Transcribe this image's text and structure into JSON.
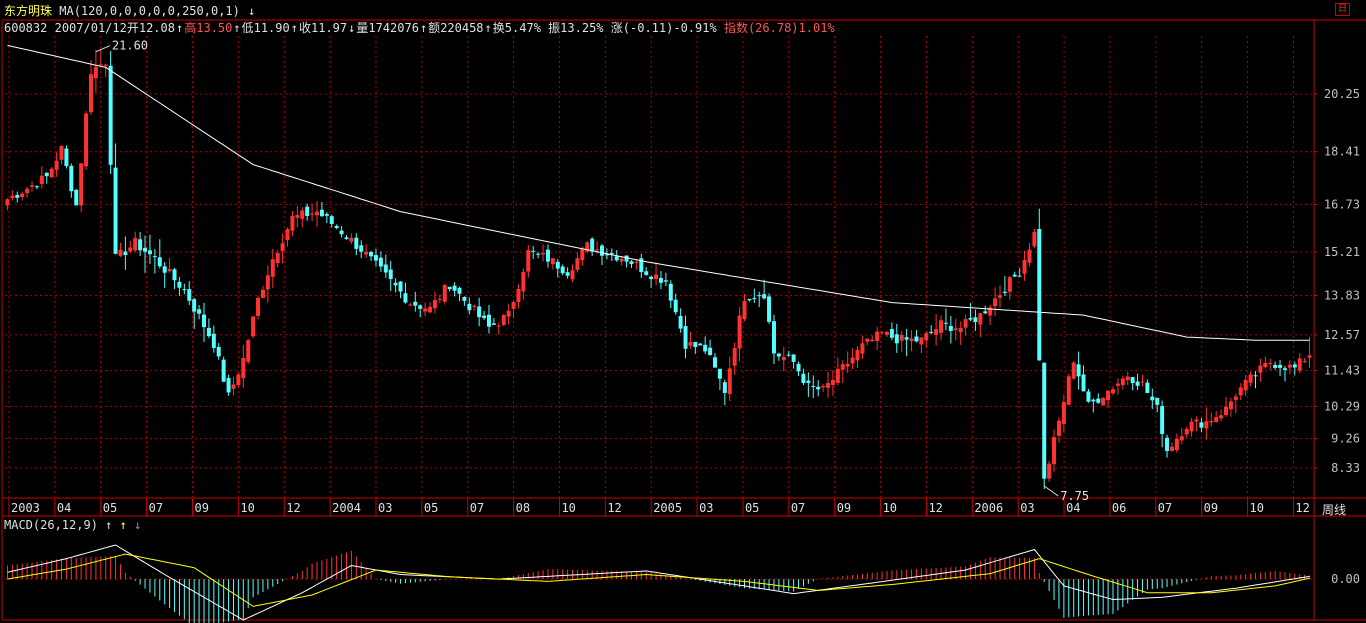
{
  "header": {
    "stock_name": "东方明珠",
    "ma_params": "MA(120,0,0,0,0,0,250,0,1)",
    "code": "600832",
    "date": "2007/01/12",
    "open_label": "开",
    "open": "12.08",
    "high_label": "高",
    "high": "13.50",
    "low_label": "低",
    "low": "11.90",
    "close_label": "收",
    "close": "11.97",
    "volume_label": "量",
    "volume": "1742076",
    "amount_label": "额",
    "amount": "220458",
    "turnover_label": "换",
    "turnover": "5.47%",
    "amplitude_label": "振",
    "amplitude": "13.25%",
    "change_label": "涨",
    "change": "(-0.11)-0.91%",
    "index_label": "指数",
    "index_value": "(26.78)",
    "index_pct": "1.01%"
  },
  "toolbar": {
    "restore_label": "日"
  },
  "period_label": "周线",
  "macd": {
    "label": "MACD(26,12,9)"
  },
  "colors": {
    "up": "#ff3232",
    "down": "#54ffff",
    "ma": "#ffffff",
    "grid": "#b00000",
    "axis": "#c80000",
    "dif": "#ffffff",
    "dea": "#ffff00"
  },
  "chart_data": [
    {
      "type": "candlestick",
      "title": "",
      "ylim": [
        7.4,
        22.1
      ],
      "y_ticks": [
        "20.25",
        "18.41",
        "16.73",
        "15.21",
        "13.83",
        "12.57",
        "11.43",
        "10.29",
        "9.26",
        "8.33"
      ],
      "x_ticks": [
        "2003",
        "04",
        "05",
        "07",
        "09",
        "10",
        "12",
        "2004",
        "03",
        "05",
        "07",
        "08",
        "10",
        "12",
        "2005",
        "03",
        "05",
        "07",
        "09",
        "10",
        "12",
        "2006",
        "03",
        "04",
        "06",
        "07",
        "09",
        "10",
        "12"
      ],
      "annotations": [
        {
          "text": "21.60",
          "value": 21.6
        },
        {
          "text": "7.75",
          "value": 7.75
        }
      ],
      "series": [
        {
          "name": "MA(120)",
          "anchors": [
            [
              0,
              21.8
            ],
            [
              20,
              21.1
            ],
            [
              50,
              18.0
            ],
            [
              80,
              16.5
            ],
            [
              130,
              14.9
            ],
            [
              180,
              13.6
            ],
            [
              219,
              13.2
            ],
            [
              240,
              12.5
            ],
            [
              254,
              12.4
            ]
          ]
        }
      ],
      "weekly_close_anchors": [
        [
          0,
          16.9
        ],
        [
          8,
          17.6
        ],
        [
          11,
          18.5
        ],
        [
          14,
          16.7
        ],
        [
          17,
          21.0
        ],
        [
          20,
          21.3
        ],
        [
          22,
          15.0
        ],
        [
          26,
          15.5
        ],
        [
          30,
          15.0
        ],
        [
          36,
          14.0
        ],
        [
          42,
          12.3
        ],
        [
          45,
          10.6
        ],
        [
          48,
          11.8
        ],
        [
          51,
          13.7
        ],
        [
          54,
          15.0
        ],
        [
          58,
          16.3
        ],
        [
          63,
          16.5
        ],
        [
          67,
          16.0
        ],
        [
          72,
          15.3
        ],
        [
          76,
          14.6
        ],
        [
          82,
          13.6
        ],
        [
          86,
          13.4
        ],
        [
          90,
          14.2
        ],
        [
          94,
          13.5
        ],
        [
          98,
          12.8
        ],
        [
          102,
          13.2
        ],
        [
          106,
          15.2
        ],
        [
          110,
          15.0
        ],
        [
          114,
          14.6
        ],
        [
          118,
          15.4
        ],
        [
          122,
          15.2
        ],
        [
          126,
          15.0
        ],
        [
          130,
          14.6
        ],
        [
          134,
          14.3
        ],
        [
          138,
          12.3
        ],
        [
          142,
          12.1
        ],
        [
          146,
          10.8
        ],
        [
          150,
          13.8
        ],
        [
          154,
          13.9
        ],
        [
          156,
          12.0
        ],
        [
          160,
          11.7
        ],
        [
          163,
          10.9
        ],
        [
          166,
          10.8
        ],
        [
          170,
          11.5
        ],
        [
          174,
          12.2
        ],
        [
          178,
          12.6
        ],
        [
          182,
          12.4
        ],
        [
          186,
          12.4
        ],
        [
          190,
          12.9
        ],
        [
          194,
          12.8
        ],
        [
          198,
          13.2
        ],
        [
          202,
          13.9
        ],
        [
          206,
          14.6
        ],
        [
          209,
          15.8
        ],
        [
          211,
          7.9
        ],
        [
          214,
          9.8
        ],
        [
          217,
          11.8
        ],
        [
          220,
          10.3
        ],
        [
          224,
          10.8
        ],
        [
          228,
          11.3
        ],
        [
          231,
          11.0
        ],
        [
          234,
          10.2
        ],
        [
          236,
          8.9
        ],
        [
          240,
          9.7
        ],
        [
          244,
          9.8
        ],
        [
          248,
          10.2
        ],
        [
          250,
          10.7
        ],
        [
          254,
          11.3
        ],
        [
          257,
          11.7
        ],
        [
          262,
          11.5
        ],
        [
          265,
          11.97
        ]
      ],
      "weekly_range_anchors": [
        [
          0,
          0.6
        ],
        [
          17,
          1.2
        ],
        [
          21,
          1.8
        ],
        [
          22,
          3.0
        ],
        [
          40,
          1.3
        ],
        [
          100,
          0.9
        ],
        [
          209,
          1.4
        ],
        [
          210,
          5.5
        ],
        [
          211,
          1.6
        ],
        [
          218,
          1.0
        ],
        [
          260,
          1.2
        ],
        [
          265,
          1.6
        ]
      ]
    },
    {
      "type": "macd",
      "params": [
        26,
        12,
        9
      ],
      "ylim": [
        -0.9,
        1.3
      ],
      "y_ticks": [
        "0.00"
      ],
      "dif_anchors": [
        [
          0,
          0.15
        ],
        [
          12,
          0.45
        ],
        [
          22,
          0.75
        ],
        [
          32,
          0.1
        ],
        [
          48,
          -0.9
        ],
        [
          60,
          -0.3
        ],
        [
          70,
          0.3
        ],
        [
          80,
          0.1
        ],
        [
          100,
          0.0
        ],
        [
          130,
          0.18
        ],
        [
          150,
          -0.15
        ],
        [
          160,
          -0.32
        ],
        [
          175,
          -0.1
        ],
        [
          195,
          0.2
        ],
        [
          209,
          0.65
        ],
        [
          215,
          -0.15
        ],
        [
          225,
          -0.45
        ],
        [
          235,
          -0.4
        ],
        [
          250,
          -0.2
        ],
        [
          265,
          0.06
        ]
      ],
      "dea_anchors": [
        [
          0,
          0.0
        ],
        [
          12,
          0.22
        ],
        [
          24,
          0.55
        ],
        [
          38,
          0.25
        ],
        [
          50,
          -0.6
        ],
        [
          62,
          -0.35
        ],
        [
          75,
          0.2
        ],
        [
          90,
          0.05
        ],
        [
          110,
          -0.05
        ],
        [
          130,
          0.1
        ],
        [
          150,
          -0.05
        ],
        [
          165,
          -0.25
        ],
        [
          180,
          -0.12
        ],
        [
          200,
          0.12
        ],
        [
          210,
          0.45
        ],
        [
          220,
          0.1
        ],
        [
          232,
          -0.3
        ],
        [
          245,
          -0.3
        ],
        [
          258,
          -0.15
        ],
        [
          265,
          0.02
        ]
      ]
    }
  ]
}
